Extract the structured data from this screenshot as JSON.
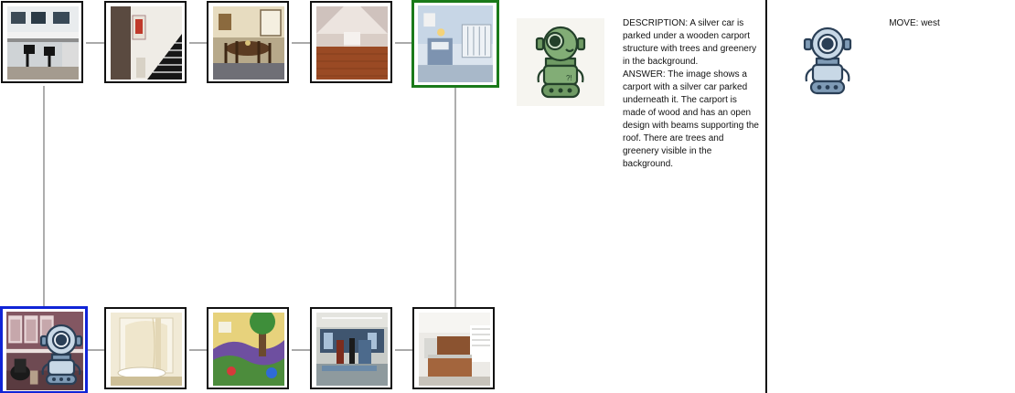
{
  "graph": {
    "rows": [
      {
        "tiles": [
          {
            "scene": "computer lab",
            "status": "normal"
          },
          {
            "scene": "staircase",
            "status": "normal"
          },
          {
            "scene": "dining room",
            "status": "normal"
          },
          {
            "scene": "attic",
            "status": "normal"
          },
          {
            "scene": "nursery",
            "status": "target"
          }
        ]
      },
      {
        "tiles": [
          {
            "scene": "locker room",
            "status": "current"
          },
          {
            "scene": "shower stall",
            "status": "normal"
          },
          {
            "scene": "playroom",
            "status": "normal"
          },
          {
            "scene": "office",
            "status": "normal"
          },
          {
            "scene": "reception",
            "status": "normal"
          }
        ]
      }
    ],
    "agent_tile": "locker room",
    "target_tile": "nursery",
    "colors": {
      "target": "#1a7a1a",
      "current": "#1024d6"
    }
  },
  "speaker": {
    "icon": "green-robot-icon"
  },
  "dialogue": {
    "description": "DESCRIPTION: A silver car is parked under a wooden carport structure with trees and greenery in the background.",
    "answer": "ANSWER: The image shows a carport with a silver car parked underneath it. The carport is made of wood and has an open design with beams supporting the roof. There are trees and greenery visible in the background."
  },
  "move": {
    "label": "MOVE: west",
    "icon": "blue-robot-icon"
  }
}
